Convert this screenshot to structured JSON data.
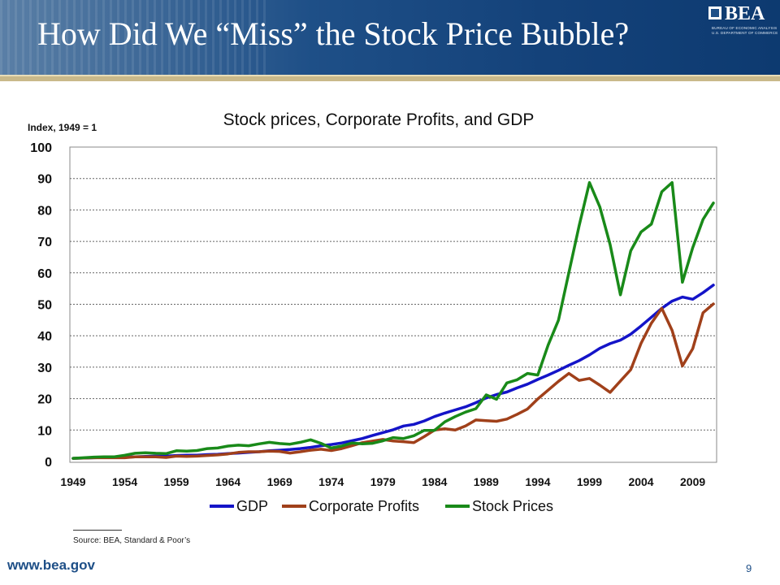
{
  "slide": {
    "title": "How Did We “Miss” the Stock Price Bubble?",
    "logo_text": "BEA",
    "logo_sub1": "BUREAU OF ECONOMIC ANALYSIS",
    "logo_sub2": "U.S. DEPARTMENT OF COMMERCE",
    "source": "Source: BEA, Standard & Poor’s",
    "url": "www.bea.gov",
    "page_number": "9"
  },
  "chart_data": {
    "type": "line",
    "title": "Stock prices, Corporate Profits, and GDP",
    "ylabel": "Index, 1949 = 1",
    "xlabel": "",
    "x": [
      1949,
      1950,
      1951,
      1952,
      1953,
      1954,
      1955,
      1956,
      1957,
      1958,
      1959,
      1960,
      1961,
      1962,
      1963,
      1964,
      1965,
      1966,
      1967,
      1968,
      1969,
      1970,
      1971,
      1972,
      1973,
      1974,
      1975,
      1976,
      1977,
      1978,
      1979,
      1980,
      1981,
      1982,
      1983,
      1984,
      1985,
      1986,
      1987,
      1988,
      1989,
      1990,
      1991,
      1992,
      1993,
      1994,
      1995,
      1996,
      1997,
      1998,
      1999,
      2000,
      2001,
      2002,
      2003,
      2004,
      2005,
      2006,
      2007,
      2008,
      2009,
      2010,
      2011
    ],
    "xticks": [
      1949,
      1954,
      1959,
      1964,
      1969,
      1974,
      1979,
      1984,
      1989,
      1994,
      1999,
      2004,
      2009
    ],
    "xlim": [
      1949,
      2011
    ],
    "ylim": [
      0,
      100
    ],
    "yticks": [
      0,
      10,
      20,
      30,
      40,
      50,
      60,
      70,
      80,
      90,
      100
    ],
    "grid": true,
    "legend_position": "bottom",
    "series": [
      {
        "name": "GDP",
        "color": "#1414c8",
        "values": [
          1.0,
          1.1,
          1.2,
          1.3,
          1.4,
          1.4,
          1.5,
          1.6,
          1.7,
          1.7,
          1.9,
          2.0,
          2.0,
          2.2,
          2.3,
          2.5,
          2.7,
          2.9,
          3.1,
          3.4,
          3.6,
          3.8,
          4.1,
          4.5,
          5.0,
          5.4,
          5.9,
          6.6,
          7.3,
          8.3,
          9.2,
          10.1,
          11.3,
          11.8,
          12.9,
          14.3,
          15.4,
          16.4,
          17.4,
          18.7,
          20.2,
          21.3,
          22.1,
          23.4,
          24.6,
          26.1,
          27.5,
          29.0,
          30.6,
          32.1,
          33.9,
          36.0,
          37.5,
          38.6,
          40.5,
          43.1,
          45.9,
          48.7,
          51.0,
          52.3,
          51.6,
          53.7,
          56.1
        ]
      },
      {
        "name": "Corporate Profits",
        "color": "#a0401a",
        "values": [
          1.0,
          1.1,
          1.2,
          1.2,
          1.2,
          1.2,
          1.5,
          1.5,
          1.5,
          1.3,
          1.7,
          1.6,
          1.7,
          1.9,
          2.1,
          2.4,
          2.9,
          3.1,
          3.1,
          3.3,
          3.2,
          2.7,
          3.1,
          3.6,
          3.9,
          3.5,
          4.1,
          5.0,
          6.0,
          6.5,
          7.0,
          6.5,
          6.3,
          6.0,
          7.9,
          10.0,
          10.4,
          10.0,
          11.3,
          13.2,
          13.0,
          12.8,
          13.5,
          15.0,
          16.7,
          19.9,
          22.7,
          25.5,
          28.0,
          25.8,
          26.4,
          24.3,
          22.0,
          25.6,
          29.2,
          37.6,
          44.0,
          48.7,
          41.7,
          30.4,
          35.9,
          47.3,
          50.1
        ]
      },
      {
        "name": "Stock Prices",
        "color": "#198a19",
        "values": [
          1.0,
          1.2,
          1.4,
          1.5,
          1.5,
          2.0,
          2.6,
          2.8,
          2.6,
          2.5,
          3.4,
          3.3,
          3.5,
          4.1,
          4.3,
          4.9,
          5.2,
          5.0,
          5.6,
          6.1,
          5.7,
          5.5,
          6.1,
          6.9,
          5.8,
          4.3,
          4.9,
          5.9,
          5.6,
          5.8,
          6.6,
          7.6,
          7.3,
          8.2,
          9.9,
          9.9,
          12.6,
          14.3,
          15.7,
          16.8,
          21.2,
          19.8,
          25.0,
          26.0,
          28.0,
          27.5,
          37.0,
          45.0,
          60.0,
          75.0,
          88.7,
          81.0,
          69.0,
          53.0,
          67.0,
          73.0,
          75.5,
          85.8,
          88.7,
          57.0,
          68.0,
          77.0,
          82.2
        ]
      }
    ]
  }
}
